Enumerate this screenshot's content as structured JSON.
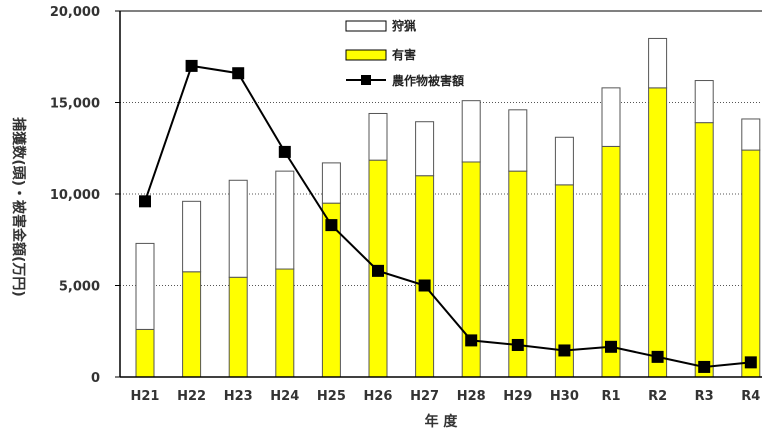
{
  "chart_data": {
    "type": "bar",
    "categories": [
      "H21",
      "H22",
      "H23",
      "H24",
      "H25",
      "H26",
      "H27",
      "H28",
      "H29",
      "H30",
      "R1",
      "R2",
      "R3",
      "R4"
    ],
    "series": [
      {
        "name": "有害",
        "kind": "stacked-bar",
        "color": "#ffff00",
        "values": [
          2600,
          5750,
          5450,
          5900,
          9500,
          11850,
          11000,
          11750,
          11250,
          10500,
          12600,
          15800,
          13900,
          12400
        ]
      },
      {
        "name": "狩猟",
        "kind": "stacked-bar",
        "color": "#ffffff",
        "values": [
          4700,
          3850,
          5300,
          5350,
          2200,
          2550,
          2950,
          3350,
          3350,
          2600,
          3200,
          2700,
          2300,
          1700
        ]
      },
      {
        "name": "農作物被害額",
        "kind": "line",
        "color": "#000000",
        "values": [
          9600,
          17000,
          16600,
          12300,
          8300,
          5800,
          5000,
          2000,
          1750,
          1450,
          1650,
          1100,
          550,
          800
        ]
      }
    ],
    "ylabel": "捕獲数(頭)・被害金額(万円)",
    "xlabel": "年 度",
    "ylim": [
      0,
      20000
    ],
    "yticks": [
      "0",
      "5,000",
      "10,000",
      "15,000",
      "20,000"
    ],
    "grid": "horizontal dotted",
    "legend_position": "top-center"
  }
}
